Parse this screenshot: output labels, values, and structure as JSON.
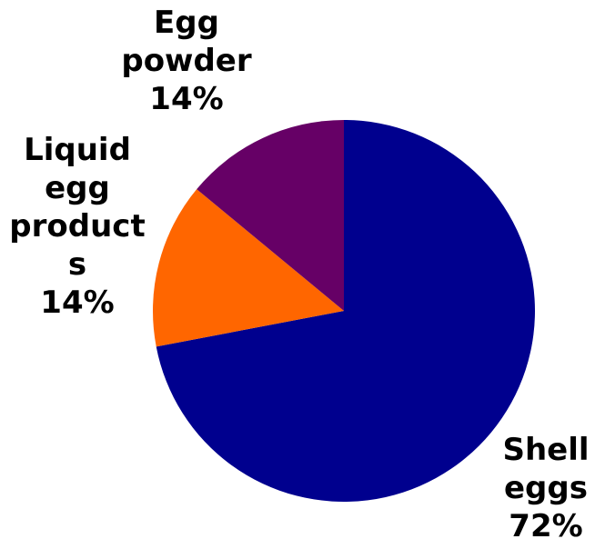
{
  "chart_data": {
    "type": "pie",
    "categories": [
      "Shell eggs",
      "Liquid egg products",
      "Egg powder"
    ],
    "values": [
      72,
      14,
      14
    ],
    "value_labels": [
      "72%",
      "14%",
      "14%"
    ],
    "colors": [
      "#00008e",
      "#ff6600",
      "#660066"
    ]
  }
}
